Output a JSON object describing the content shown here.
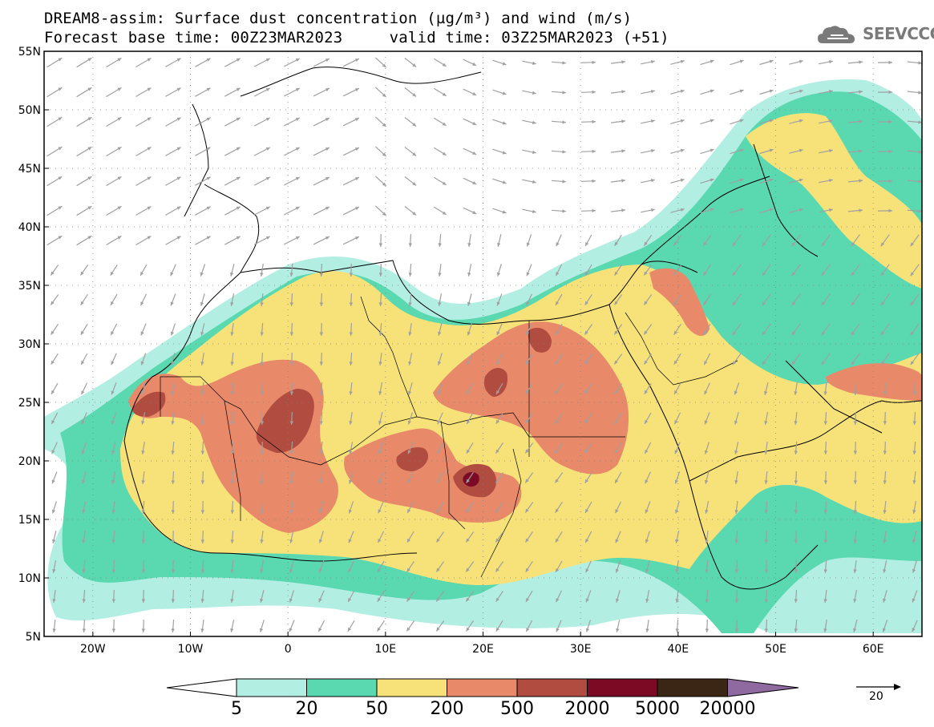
{
  "title": {
    "line1": "DREAM8-assim: Surface dust concentration (µg/m³) and wind (m/s)",
    "line2": "Forecast base time: 00Z23MAR2023     valid time: 03Z25MAR2023 (+51)"
  },
  "logo": {
    "text": "SEEVCCC",
    "icon": "cloud-icon"
  },
  "map": {
    "lon_range": [
      -25,
      65
    ],
    "lat_range": [
      5,
      55
    ],
    "lat_ticks": [
      "5N",
      "10N",
      "15N",
      "20N",
      "25N",
      "30N",
      "35N",
      "40N",
      "45N",
      "50N",
      "55N"
    ],
    "lon_ticks": [
      "20W",
      "10W",
      "0",
      "10E",
      "20E",
      "30E",
      "40E",
      "50E",
      "60E"
    ],
    "grid": "dotted"
  },
  "legend": {
    "thresholds": [
      "5",
      "20",
      "50",
      "200",
      "500",
      "2000",
      "5000",
      "20000"
    ],
    "colors": [
      "#ffffff",
      "#b3eee3",
      "#5ad8b0",
      "#f7e27a",
      "#e8896a",
      "#b04c40",
      "#7d0a25",
      "#3b2515",
      "#8e6aa0"
    ],
    "wind_reference": "20"
  }
}
